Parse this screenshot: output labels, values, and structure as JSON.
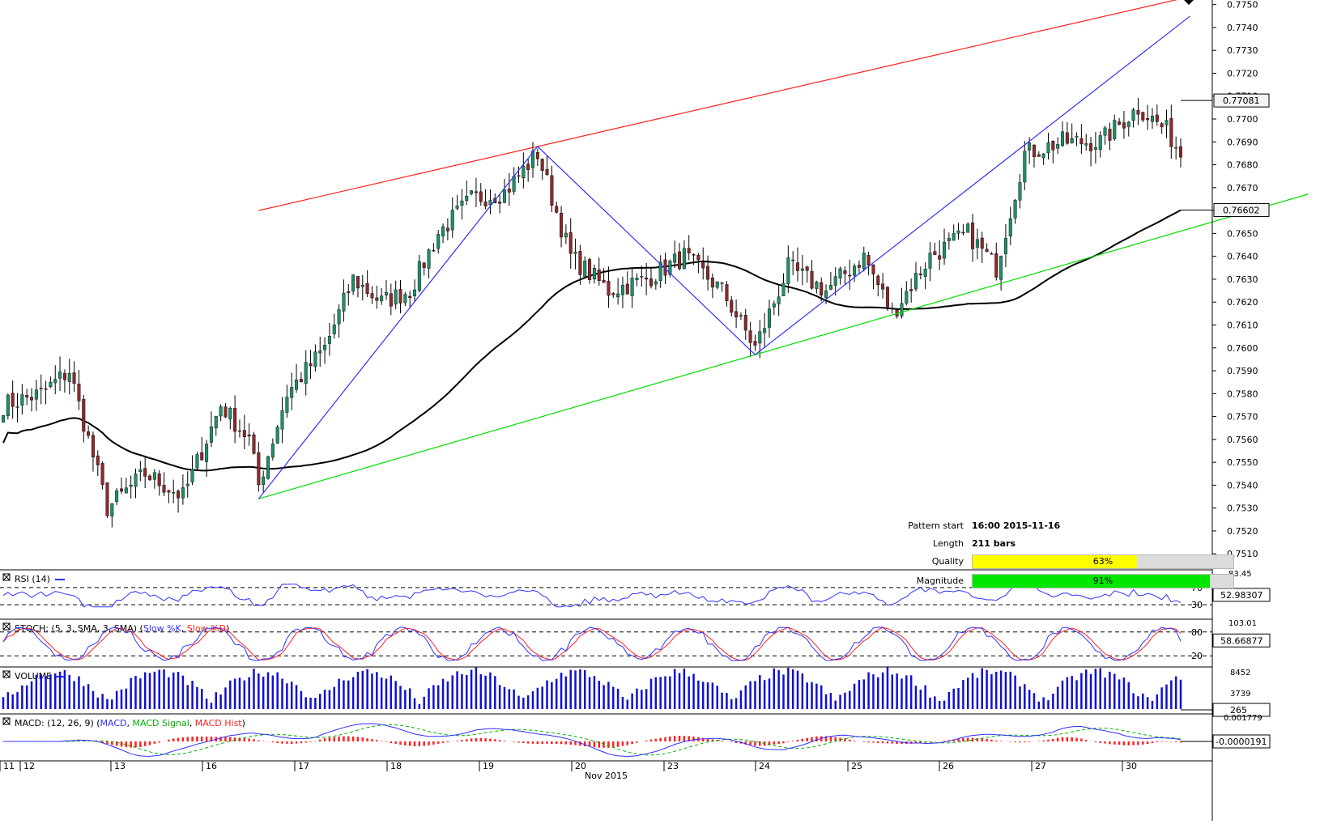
{
  "chart_data": {
    "type": "candlestick",
    "price_axis": {
      "ticks": [
        "0.7750",
        "0.7740",
        "0.7730",
        "0.7720",
        "0.7710",
        "0.7700",
        "0.7690",
        "0.7680",
        "0.7670",
        "0.7660",
        "0.7650",
        "0.7640",
        "0.7630",
        "0.7620",
        "0.7610",
        "0.7600",
        "0.7590",
        "0.7580",
        "0.7570",
        "0.7560",
        "0.7550",
        "0.7540",
        "0.7530",
        "0.7520",
        "0.7510"
      ],
      "range": [
        0.7503,
        0.7752
      ],
      "last_price_label": "0.77081",
      "ma_label": "0.76602"
    },
    "x_axis": {
      "month_label": "Nov 2015",
      "day_labels": [
        "11",
        "12",
        "13",
        "16",
        "17",
        "18",
        "19",
        "20",
        "23",
        "24",
        "25",
        "26",
        "27",
        "30"
      ]
    },
    "pattern_points": [
      {
        "bar": 0,
        "price": 0.7534
      },
      {
        "bar": 59,
        "price": 0.7688
      },
      {
        "bar": 105,
        "price": 0.7597
      },
      {
        "bar": 197,
        "price": 0.7745
      }
    ],
    "resistance_line": {
      "from": {
        "bar": 0,
        "price": 0.766
      },
      "through": {
        "bar": 59,
        "price": 0.7688
      }
    },
    "support_line": {
      "from": {
        "bar": 0,
        "price": 0.7534
      },
      "through": {
        "bar": 105,
        "price": 0.7597
      }
    },
    "indicators": {
      "rsi": {
        "title": "RSI (14)",
        "levels": [
          "70",
          "30"
        ],
        "top_label": "83.45",
        "value": "52.98307"
      },
      "stoch": {
        "title": "STOCH: (5, 3, SMA, 3, SMA)",
        "legend_k": "Slow %K",
        "legend_d": "Slow %D",
        "levels": [
          "80",
          "20"
        ],
        "top_label": "103.01",
        "value": "58.66877"
      },
      "volume": {
        "title": "VOLUME",
        "top_label": "8452",
        "mid_label": "3739",
        "value": "265"
      },
      "macd": {
        "title": "MACD: (12, 26, 9)",
        "legend_macd": "MACD",
        "legend_signal": "MACD Signal",
        "legend_hist": "MACD Hist",
        "top_label": "0.001779",
        "value": "-0.0000191"
      }
    }
  },
  "pattern_info": {
    "start_label": "Pattern start",
    "start_value": "16:00 2015-11-16",
    "length_label": "Length",
    "length_value": "211 bars",
    "quality_label": "Quality",
    "quality_value": "63%",
    "quality_fraction": 0.63,
    "magnitude_label": "Magnitude",
    "magnitude_value": "91%",
    "magnitude_fraction": 0.91
  },
  "colors": {
    "bull": "#1f8f6a",
    "bear": "#8b2a2a",
    "resistance": "#ff2020",
    "support": "#00dd00",
    "zigzag": "#3030ff",
    "ma": "#000000",
    "quality_bar": "#ffff00",
    "magnitude_bar": "#00e600"
  }
}
